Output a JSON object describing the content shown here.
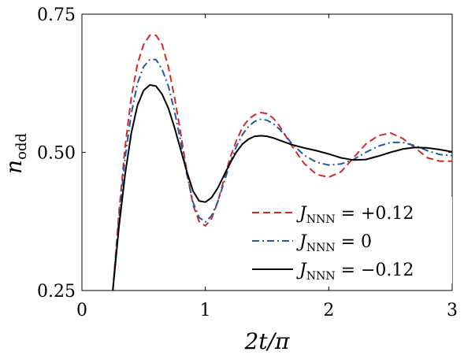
{
  "chart_data": {
    "type": "line",
    "title": "",
    "xlabel": "2t/π",
    "ylabel": "n_odd",
    "xlim": [
      0,
      3
    ],
    "ylim": [
      0.25,
      0.75
    ],
    "xticks": [
      0,
      1,
      2,
      3
    ],
    "xtick_labels": [
      "0",
      "1",
      "2",
      "3"
    ],
    "yticks": [
      0.25,
      0.5,
      0.75
    ],
    "ytick_labels": [
      "0.25",
      "0.50",
      "0.75"
    ],
    "grid": false,
    "legend_position": "lower-right",
    "series": [
      {
        "name": "J_NNN = +0.12",
        "label_var": "J",
        "label_sub": "NNN",
        "label_rest": " = +0.12",
        "color": "#d62728",
        "dash": "dashed",
        "x": [
          0.25,
          0.3,
          0.35,
          0.4,
          0.45,
          0.5,
          0.55,
          0.6,
          0.65,
          0.7,
          0.75,
          0.8,
          0.85,
          0.9,
          0.95,
          1.0,
          1.05,
          1.1,
          1.15,
          1.2,
          1.25,
          1.3,
          1.35,
          1.4,
          1.45,
          1.5,
          1.55,
          1.6,
          1.65,
          1.7,
          1.8,
          1.9,
          2.0,
          2.1,
          2.2,
          2.3,
          2.4,
          2.5,
          2.6,
          2.7,
          2.8,
          2.9,
          3.0
        ],
        "y": [
          0.25,
          0.39,
          0.51,
          0.6,
          0.66,
          0.695,
          0.712,
          0.712,
          0.695,
          0.655,
          0.6,
          0.535,
          0.465,
          0.405,
          0.375,
          0.367,
          0.38,
          0.41,
          0.45,
          0.49,
          0.52,
          0.545,
          0.56,
          0.568,
          0.572,
          0.57,
          0.562,
          0.548,
          0.53,
          0.512,
          0.48,
          0.46,
          0.455,
          0.465,
          0.49,
          0.515,
          0.53,
          0.535,
          0.525,
          0.508,
          0.49,
          0.484,
          0.484
        ]
      },
      {
        "name": "J_NNN = 0",
        "label_var": "J",
        "label_sub": "NNN",
        "label_rest": " = 0",
        "color": "#1f5aa6",
        "dash": "dashdot",
        "x": [
          0.25,
          0.3,
          0.35,
          0.4,
          0.45,
          0.5,
          0.55,
          0.6,
          0.65,
          0.7,
          0.75,
          0.8,
          0.85,
          0.9,
          0.95,
          1.0,
          1.05,
          1.1,
          1.15,
          1.2,
          1.25,
          1.3,
          1.35,
          1.4,
          1.45,
          1.5,
          1.55,
          1.6,
          1.65,
          1.7,
          1.8,
          1.9,
          2.0,
          2.1,
          2.2,
          2.3,
          2.4,
          2.5,
          2.6,
          2.7,
          2.8,
          2.9,
          3.0
        ],
        "y": [
          0.25,
          0.38,
          0.49,
          0.57,
          0.625,
          0.655,
          0.668,
          0.668,
          0.65,
          0.62,
          0.575,
          0.52,
          0.46,
          0.41,
          0.382,
          0.374,
          0.385,
          0.41,
          0.445,
          0.48,
          0.51,
          0.532,
          0.547,
          0.556,
          0.56,
          0.558,
          0.552,
          0.542,
          0.53,
          0.516,
          0.495,
          0.482,
          0.477,
          0.479,
          0.487,
          0.5,
          0.511,
          0.518,
          0.518,
          0.512,
          0.503,
          0.496,
          0.494
        ]
      },
      {
        "name": "J_NNN = −0.12",
        "label_var": "J",
        "label_sub": "NNN",
        "label_rest": " = −0.12",
        "color": "#000000",
        "dash": "solid",
        "x": [
          0.25,
          0.3,
          0.35,
          0.4,
          0.45,
          0.5,
          0.55,
          0.6,
          0.65,
          0.7,
          0.75,
          0.8,
          0.85,
          0.9,
          0.95,
          1.0,
          1.05,
          1.1,
          1.15,
          1.2,
          1.25,
          1.3,
          1.35,
          1.4,
          1.45,
          1.5,
          1.55,
          1.6,
          1.65,
          1.7,
          1.8,
          1.9,
          2.0,
          2.1,
          2.2,
          2.3,
          2.4,
          2.5,
          2.6,
          2.7,
          2.8,
          2.9,
          3.0
        ],
        "y": [
          0.25,
          0.365,
          0.46,
          0.535,
          0.585,
          0.612,
          0.622,
          0.62,
          0.605,
          0.58,
          0.545,
          0.505,
          0.465,
          0.43,
          0.412,
          0.41,
          0.418,
          0.435,
          0.458,
          0.48,
          0.5,
          0.515,
          0.524,
          0.529,
          0.53,
          0.529,
          0.526,
          0.522,
          0.518,
          0.514,
          0.508,
          0.503,
          0.497,
          0.49,
          0.486,
          0.487,
          0.493,
          0.5,
          0.506,
          0.509,
          0.508,
          0.505,
          0.501
        ]
      }
    ]
  }
}
